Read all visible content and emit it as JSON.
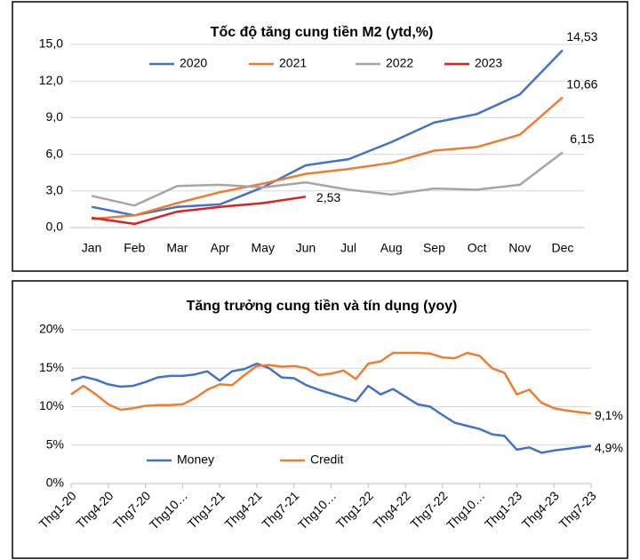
{
  "chart_data": [
    {
      "type": "line",
      "title": "Tốc độ tăng cung tiền M2 (ytd,%)",
      "categories": [
        "Jan",
        "Feb",
        "Mar",
        "Apr",
        "May",
        "Jun",
        "Jul",
        "Aug",
        "Sep",
        "Oct",
        "Nov",
        "Dec"
      ],
      "series": [
        {
          "name": "2020",
          "color": "#4472c4",
          "values": [
            1.7,
            1.0,
            1.7,
            1.9,
            3.3,
            5.1,
            5.6,
            7.0,
            8.6,
            9.3,
            10.9,
            14.53
          ],
          "value_labels": [
            null,
            null,
            null,
            null,
            null,
            null,
            null,
            null,
            null,
            null,
            null,
            "14,53"
          ]
        },
        {
          "name": "2021",
          "color": "#ed7d31",
          "values": [
            0.7,
            1.0,
            2.0,
            2.9,
            3.6,
            4.4,
            4.8,
            5.3,
            6.3,
            6.6,
            7.6,
            10.66
          ],
          "value_labels": [
            null,
            null,
            null,
            null,
            null,
            null,
            null,
            null,
            null,
            null,
            null,
            "10,66"
          ]
        },
        {
          "name": "2022",
          "color": "#a5a5a5",
          "values": [
            2.6,
            1.8,
            3.4,
            3.5,
            3.3,
            3.7,
            3.1,
            2.7,
            3.2,
            3.1,
            3.5,
            6.15
          ],
          "value_labels": [
            null,
            null,
            null,
            null,
            null,
            null,
            null,
            null,
            null,
            null,
            null,
            "6,15"
          ]
        },
        {
          "name": "2023",
          "color": "#e02020",
          "values": [
            0.8,
            0.3,
            1.3,
            1.7,
            2.0,
            2.53,
            null,
            null,
            null,
            null,
            null,
            null
          ],
          "value_labels": [
            null,
            null,
            null,
            null,
            null,
            "2,53",
            null,
            null,
            null,
            null,
            null,
            null
          ]
        }
      ],
      "ylim": [
        0,
        15
      ],
      "yticks": [
        {
          "value": 0,
          "label": "0,0"
        },
        {
          "value": 3,
          "label": "3,0"
        },
        {
          "value": 6,
          "label": "6,0"
        },
        {
          "value": 9,
          "label": "9,0"
        },
        {
          "value": 12,
          "label": "12,0"
        },
        {
          "value": 15,
          "label": "15,0"
        }
      ],
      "grid": true,
      "legend": "top"
    },
    {
      "type": "line",
      "title": "Tăng trưởng cung tiền và tín dụng (yoy)",
      "categories": [
        "Thg1-20",
        null,
        null,
        "Thg4-20",
        null,
        null,
        "Thg7-20",
        null,
        null,
        "Thg10…",
        null,
        null,
        "Thg1-21",
        null,
        null,
        "Thg4-21",
        null,
        null,
        "Thg7-21",
        null,
        null,
        "Thg10…",
        null,
        null,
        "Thg1-22",
        null,
        null,
        "Thg4-22",
        null,
        null,
        "Thg7-22",
        null,
        null,
        "Thg10…",
        null,
        null,
        "Thg1-23",
        null,
        null,
        "Thg4-23",
        null,
        null,
        "Thg7-23"
      ],
      "series": [
        {
          "name": "Money",
          "color": "#4472c4",
          "values": [
            13.4,
            13.9,
            13.5,
            12.9,
            12.6,
            12.7,
            13.2,
            13.8,
            14.0,
            14.0,
            14.2,
            14.6,
            13.4,
            14.6,
            14.9,
            15.6,
            15.0,
            13.8,
            13.7,
            12.8,
            12.2,
            11.7,
            11.2,
            10.7,
            12.7,
            11.6,
            12.3,
            11.3,
            10.3,
            10.0,
            8.9,
            7.9,
            7.5,
            7.1,
            6.4,
            6.2,
            4.4,
            4.7,
            4.0,
            4.3,
            4.5,
            4.7,
            4.9
          ],
          "value_labels": [
            null,
            null,
            null,
            null,
            null,
            null,
            null,
            null,
            null,
            null,
            null,
            null,
            null,
            null,
            null,
            null,
            null,
            null,
            null,
            null,
            null,
            null,
            null,
            null,
            null,
            null,
            null,
            null,
            null,
            null,
            null,
            null,
            null,
            null,
            null,
            null,
            null,
            null,
            null,
            null,
            null,
            null,
            "4,9%"
          ]
        },
        {
          "name": "Credit",
          "color": "#ed7d31",
          "values": [
            11.6,
            12.7,
            11.6,
            10.3,
            9.6,
            9.8,
            10.1,
            10.2,
            10.2,
            10.3,
            11.1,
            12.2,
            12.9,
            12.8,
            14.1,
            15.3,
            15.4,
            15.2,
            15.3,
            15.0,
            14.1,
            14.3,
            14.7,
            13.6,
            15.6,
            15.9,
            17.0,
            17.0,
            17.0,
            16.9,
            16.4,
            16.3,
            17.0,
            16.6,
            15.0,
            14.4,
            11.6,
            12.2,
            10.5,
            9.8,
            9.5,
            9.3,
            9.1
          ],
          "value_labels": [
            null,
            null,
            null,
            null,
            null,
            null,
            null,
            null,
            null,
            null,
            null,
            null,
            null,
            null,
            null,
            null,
            null,
            null,
            null,
            null,
            null,
            null,
            null,
            null,
            null,
            null,
            null,
            null,
            null,
            null,
            null,
            null,
            null,
            null,
            null,
            null,
            null,
            null,
            null,
            null,
            null,
            null,
            "9,1%"
          ]
        }
      ],
      "ylim": [
        0,
        20
      ],
      "yticks": [
        {
          "value": 0,
          "label": "0%"
        },
        {
          "value": 5,
          "label": "5%"
        },
        {
          "value": 10,
          "label": "10%"
        },
        {
          "value": 15,
          "label": "15%"
        },
        {
          "value": 20,
          "label": "20%"
        }
      ],
      "grid": true,
      "legend": "bottom-left"
    }
  ]
}
